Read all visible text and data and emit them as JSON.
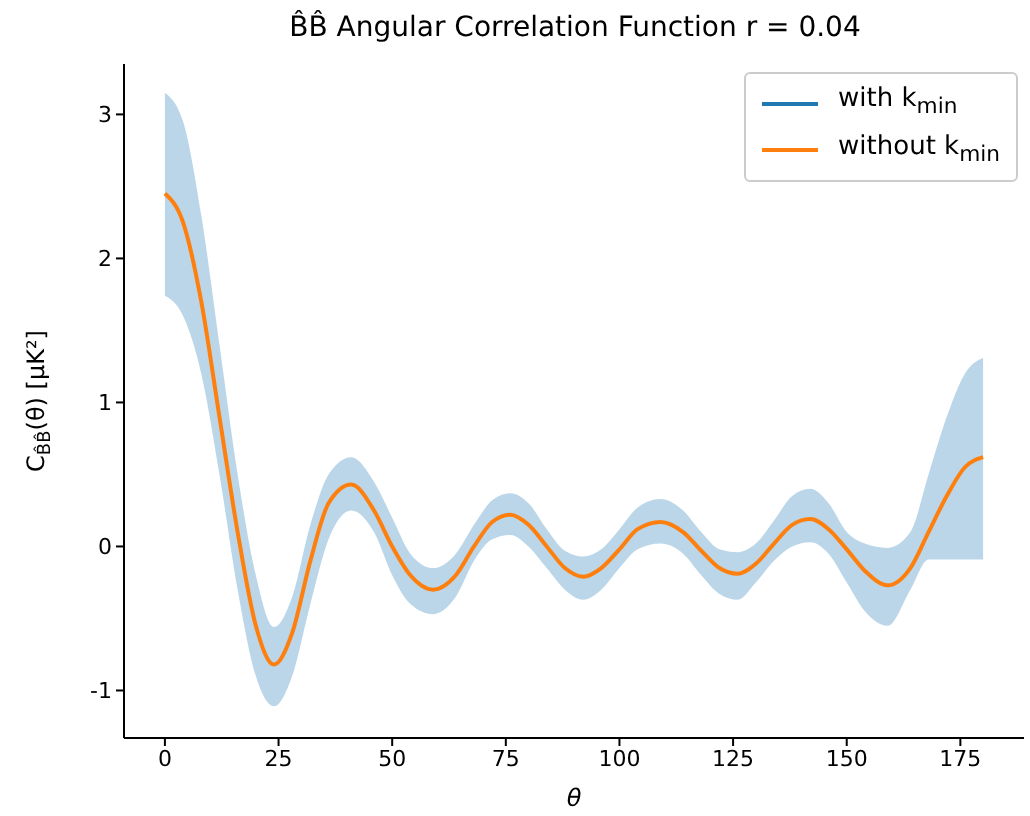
{
  "chart_data": {
    "type": "line",
    "title": "B̂B̂ Angular Correlation Function r = 0.04",
    "xlabel": "θ",
    "ylabel": "C$_{B̂B̂}$(θ) [μK²]",
    "x": [
      0,
      4,
      8,
      12,
      16,
      20,
      24,
      28,
      32,
      36,
      41,
      46,
      50,
      54,
      59,
      64,
      68,
      72,
      76,
      80,
      84,
      88,
      92,
      96,
      100,
      104,
      109,
      114,
      118,
      122,
      126,
      130,
      134,
      138,
      142,
      146,
      150,
      154,
      159,
      164,
      168,
      172,
      176,
      180
    ],
    "series": [
      {
        "name": "with k$_{min}$",
        "color": "#1f77b4",
        "values": [
          null,
          null,
          null,
          null,
          null,
          null,
          null,
          null,
          null,
          null,
          null,
          null,
          null,
          null,
          null,
          null,
          null,
          null,
          null,
          null,
          null,
          null,
          null,
          null,
          null,
          null,
          null,
          null,
          null,
          null,
          null,
          null,
          null,
          null,
          null,
          null,
          null,
          null,
          null,
          null,
          null,
          null,
          null,
          null
        ],
        "lower": [
          1.74,
          1.6,
          1.2,
          0.5,
          -0.3,
          -0.9,
          -1.11,
          -0.9,
          -0.4,
          0.05,
          0.25,
          0.1,
          -0.2,
          -0.4,
          -0.47,
          -0.35,
          -0.1,
          0.05,
          0.08,
          0.0,
          -0.15,
          -0.3,
          -0.37,
          -0.3,
          -0.15,
          -0.02,
          0.02,
          -0.05,
          -0.2,
          -0.33,
          -0.37,
          -0.25,
          -0.1,
          0.0,
          0.03,
          -0.05,
          -0.25,
          -0.45,
          -0.55,
          -0.3,
          -0.09,
          -0.09,
          -0.09,
          -0.09
        ],
        "upper": [
          3.15,
          2.95,
          2.3,
          1.4,
          0.5,
          -0.2,
          -0.56,
          -0.35,
          0.15,
          0.5,
          0.62,
          0.45,
          0.2,
          -0.05,
          -0.15,
          -0.05,
          0.15,
          0.32,
          0.37,
          0.3,
          0.12,
          -0.03,
          -0.07,
          -0.02,
          0.12,
          0.27,
          0.33,
          0.25,
          0.1,
          -0.02,
          -0.04,
          0.02,
          0.18,
          0.35,
          0.4,
          0.3,
          0.1,
          0.02,
          -0.01,
          0.1,
          0.5,
          0.9,
          1.2,
          1.31
        ]
      },
      {
        "name": "without k$_{min}$",
        "color": "#ff7f0e",
        "values": [
          2.45,
          2.25,
          1.7,
          0.9,
          0.1,
          -0.55,
          -0.82,
          -0.6,
          -0.1,
          0.3,
          0.43,
          0.25,
          0.0,
          -0.2,
          -0.3,
          -0.2,
          0.0,
          0.17,
          0.22,
          0.15,
          0.0,
          -0.15,
          -0.21,
          -0.15,
          -0.02,
          0.12,
          0.17,
          0.1,
          -0.03,
          -0.15,
          -0.19,
          -0.12,
          0.02,
          0.15,
          0.19,
          0.12,
          -0.02,
          -0.17,
          -0.27,
          -0.15,
          0.1,
          0.35,
          0.55,
          0.62
        ]
      }
    ],
    "xlim": [
      -9,
      189
    ],
    "xticks": [
      0,
      25,
      50,
      75,
      100,
      125,
      150,
      175
    ],
    "ylim": [
      -1.33,
      3.35
    ],
    "yticks": [
      -1,
      0,
      1,
      2,
      3
    ],
    "grid": false,
    "legend": "top right",
    "marker": "none",
    "line_style": "solid"
  }
}
